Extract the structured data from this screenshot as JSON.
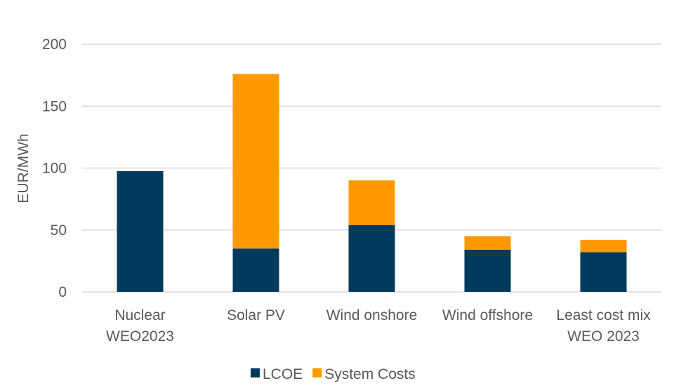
{
  "chart_data": {
    "type": "bar",
    "stacked": true,
    "title": "",
    "xlabel": "",
    "ylabel": "EUR/MWh",
    "ylim": [
      0,
      200
    ],
    "yticks": [
      0,
      50,
      100,
      150,
      200
    ],
    "grid": true,
    "legend_position": "bottom",
    "categories": [
      [
        "Nuclear",
        "WEO2023"
      ],
      [
        "Solar PV"
      ],
      [
        "Wind onshore"
      ],
      [
        "Wind offshore"
      ],
      [
        "Least cost mix",
        "WEO 2023"
      ]
    ],
    "series": [
      {
        "name": "LCOE",
        "color": "#003a5d",
        "values": [
          97.5,
          35,
          54,
          34,
          32
        ]
      },
      {
        "name": "System Costs",
        "color": "#ff9900",
        "values": [
          0,
          141,
          36,
          11,
          10
        ]
      }
    ]
  }
}
